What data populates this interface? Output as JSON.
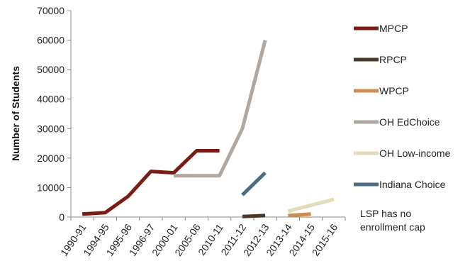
{
  "chart_data": {
    "type": "line",
    "ylabel": "Number of Students",
    "ylim": [
      0,
      70000
    ],
    "yticks": [
      0,
      10000,
      20000,
      30000,
      40000,
      50000,
      60000,
      70000
    ],
    "categories": [
      "1990-91",
      "1994-95",
      "1995-96",
      "1996-97",
      "2000-01",
      "2005-06",
      "2010-11",
      "2011-12",
      "2012-13",
      "2013-14",
      "2014-15",
      "2015-16"
    ],
    "grid": false,
    "legend_position": "right",
    "series": [
      {
        "name": "MPCP",
        "color": "#7b1c14",
        "values": [
          1000,
          1500,
          7000,
          15500,
          15000,
          22500,
          22500,
          null,
          null,
          null,
          null,
          null
        ]
      },
      {
        "name": "RPCP",
        "color": "#4a382a",
        "values": [
          null,
          null,
          null,
          null,
          null,
          null,
          null,
          200,
          500,
          null,
          null,
          null
        ]
      },
      {
        "name": "WPCP",
        "color": "#d08c4e",
        "values": [
          null,
          null,
          null,
          null,
          null,
          null,
          null,
          null,
          null,
          500,
          1000,
          null
        ]
      },
      {
        "name": "OH EdChoice",
        "color": "#aea8a1",
        "values": [
          null,
          null,
          null,
          null,
          14000,
          14000,
          14000,
          30000,
          60000,
          null,
          null,
          null
        ]
      },
      {
        "name": "OH Low-income",
        "color": "#e5dbb9",
        "values": [
          null,
          null,
          null,
          null,
          null,
          null,
          null,
          null,
          null,
          2000,
          4000,
          6000
        ]
      },
      {
        "name": "Indiana Choice",
        "color": "#4b6d86",
        "values": [
          null,
          null,
          null,
          null,
          null,
          null,
          null,
          7500,
          15000,
          null,
          null,
          null
        ]
      }
    ],
    "annotation": "LSP has no enrollment cap"
  }
}
